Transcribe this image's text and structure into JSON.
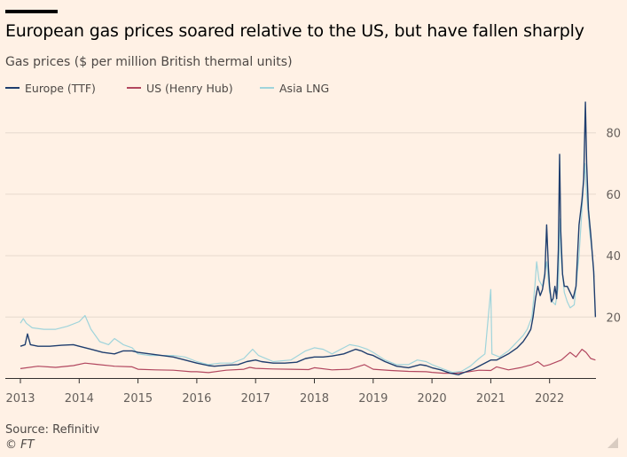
{
  "title": "European gas prices soared relative to the US, but have fallen sharply",
  "subtitle": "Gas prices ($ per million British thermal units)",
  "source": "Source: Refinitiv",
  "copyright": "© FT",
  "colors": {
    "europe": "#1F3E6E",
    "us": "#B2475F",
    "asia": "#9FD4DB",
    "grid": "#E6D9CE",
    "axis": "#33302E",
    "text": "#66605C",
    "background": "#FFF1E5"
  },
  "chart_data": {
    "type": "line",
    "title": "European gas prices soared relative to the US, but have fallen sharply",
    "ylabel": "Gas prices ($ per million British thermal units)",
    "xlim": [
      2013,
      2022.9
    ],
    "ylim": [
      0,
      90
    ],
    "yticks": [
      20,
      40,
      60,
      80
    ],
    "xticks": [
      "2013",
      "2014",
      "2015",
      "2016",
      "2017",
      "2018",
      "2019",
      "2020",
      "2021",
      "2022"
    ],
    "grid": true,
    "legend": "top-left",
    "series": [
      {
        "name": "Europe (TTF)",
        "color": "#1F3E6E",
        "points": [
          [
            2013.0,
            10.5
          ],
          [
            2013.08,
            11
          ],
          [
            2013.12,
            14.5
          ],
          [
            2013.17,
            11
          ],
          [
            2013.3,
            10.5
          ],
          [
            2013.5,
            10.5
          ],
          [
            2013.7,
            10.8
          ],
          [
            2013.9,
            11
          ],
          [
            2014.0,
            10.5
          ],
          [
            2014.2,
            9.5
          ],
          [
            2014.4,
            8.5
          ],
          [
            2014.6,
            8
          ],
          [
            2014.75,
            9
          ],
          [
            2014.9,
            9
          ],
          [
            2015.0,
            8.5
          ],
          [
            2015.2,
            8
          ],
          [
            2015.4,
            7.5
          ],
          [
            2015.6,
            7
          ],
          [
            2015.8,
            6
          ],
          [
            2016.0,
            5
          ],
          [
            2016.2,
            4.2
          ],
          [
            2016.3,
            4
          ],
          [
            2016.5,
            4.3
          ],
          [
            2016.7,
            4.5
          ],
          [
            2016.85,
            5.5
          ],
          [
            2017.0,
            6
          ],
          [
            2017.1,
            5.5
          ],
          [
            2017.3,
            5
          ],
          [
            2017.5,
            5
          ],
          [
            2017.7,
            5.3
          ],
          [
            2017.85,
            6.5
          ],
          [
            2018.0,
            7
          ],
          [
            2018.15,
            7
          ],
          [
            2018.3,
            7.3
          ],
          [
            2018.5,
            8
          ],
          [
            2018.7,
            9.5
          ],
          [
            2018.8,
            9
          ],
          [
            2018.9,
            8
          ],
          [
            2019.0,
            7.5
          ],
          [
            2019.2,
            5.5
          ],
          [
            2019.4,
            4
          ],
          [
            2019.6,
            3.5
          ],
          [
            2019.8,
            4.5
          ],
          [
            2019.9,
            4.2
          ],
          [
            2020.0,
            3.5
          ],
          [
            2020.15,
            2.8
          ],
          [
            2020.3,
            1.8
          ],
          [
            2020.45,
            1.2
          ],
          [
            2020.55,
            2
          ],
          [
            2020.7,
            3
          ],
          [
            2020.85,
            4.5
          ],
          [
            2021.0,
            6
          ],
          [
            2021.1,
            6
          ],
          [
            2021.2,
            7
          ],
          [
            2021.3,
            8
          ],
          [
            2021.45,
            10
          ],
          [
            2021.55,
            12
          ],
          [
            2021.62,
            14
          ],
          [
            2021.68,
            16
          ],
          [
            2021.72,
            20
          ],
          [
            2021.76,
            26
          ],
          [
            2021.8,
            30
          ],
          [
            2021.84,
            27
          ],
          [
            2021.88,
            29
          ],
          [
            2021.92,
            34
          ],
          [
            2021.95,
            50
          ],
          [
            2021.98,
            36
          ],
          [
            2022.0,
            30
          ],
          [
            2022.03,
            25
          ],
          [
            2022.06,
            26
          ],
          [
            2022.09,
            30
          ],
          [
            2022.12,
            26
          ],
          [
            2022.15,
            42
          ],
          [
            2022.17,
            73
          ],
          [
            2022.19,
            48
          ],
          [
            2022.22,
            34
          ],
          [
            2022.25,
            30
          ],
          [
            2022.3,
            30
          ],
          [
            2022.35,
            28
          ],
          [
            2022.4,
            26
          ],
          [
            2022.45,
            30
          ],
          [
            2022.5,
            50
          ],
          [
            2022.55,
            58
          ],
          [
            2022.58,
            65
          ],
          [
            2022.61,
            90
          ],
          [
            2022.63,
            70
          ],
          [
            2022.66,
            55
          ],
          [
            2022.7,
            47
          ],
          [
            2022.75,
            35
          ],
          [
            2022.78,
            20
          ]
        ]
      },
      {
        "name": "US (Henry Hub)",
        "color": "#B2475F",
        "points": [
          [
            2013.0,
            3.2
          ],
          [
            2013.3,
            4
          ],
          [
            2013.6,
            3.6
          ],
          [
            2013.9,
            4.2
          ],
          [
            2014.1,
            5
          ],
          [
            2014.3,
            4.6
          ],
          [
            2014.6,
            4
          ],
          [
            2014.9,
            3.8
          ],
          [
            2015.0,
            3
          ],
          [
            2015.3,
            2.8
          ],
          [
            2015.6,
            2.7
          ],
          [
            2015.9,
            2.2
          ],
          [
            2016.0,
            2.2
          ],
          [
            2016.2,
            1.9
          ],
          [
            2016.5,
            2.7
          ],
          [
            2016.8,
            3
          ],
          [
            2016.9,
            3.6
          ],
          [
            2017.0,
            3.3
          ],
          [
            2017.3,
            3.1
          ],
          [
            2017.6,
            3
          ],
          [
            2017.9,
            2.9
          ],
          [
            2018.0,
            3.5
          ],
          [
            2018.3,
            2.8
          ],
          [
            2018.6,
            3
          ],
          [
            2018.85,
            4.5
          ],
          [
            2019.0,
            3
          ],
          [
            2019.3,
            2.6
          ],
          [
            2019.6,
            2.3
          ],
          [
            2019.9,
            2.2
          ],
          [
            2020.0,
            2
          ],
          [
            2020.2,
            1.7
          ],
          [
            2020.4,
            1.7
          ],
          [
            2020.6,
            2.1
          ],
          [
            2020.8,
            2.7
          ],
          [
            2021.0,
            2.6
          ],
          [
            2021.1,
            3.8
          ],
          [
            2021.3,
            2.8
          ],
          [
            2021.5,
            3.5
          ],
          [
            2021.7,
            4.5
          ],
          [
            2021.8,
            5.5
          ],
          [
            2021.9,
            4
          ],
          [
            2022.0,
            4.5
          ],
          [
            2022.2,
            6
          ],
          [
            2022.35,
            8.5
          ],
          [
            2022.45,
            7
          ],
          [
            2022.55,
            9.5
          ],
          [
            2022.62,
            8.5
          ],
          [
            2022.7,
            6.5
          ],
          [
            2022.78,
            6
          ]
        ]
      },
      {
        "name": "Asia LNG",
        "color": "#9FD4DB",
        "points": [
          [
            2013.0,
            18
          ],
          [
            2013.05,
            19.5
          ],
          [
            2013.1,
            18
          ],
          [
            2013.2,
            16.5
          ],
          [
            2013.4,
            16
          ],
          [
            2013.6,
            16
          ],
          [
            2013.8,
            17
          ],
          [
            2014.0,
            18.5
          ],
          [
            2014.1,
            20.5
          ],
          [
            2014.2,
            16
          ],
          [
            2014.35,
            12
          ],
          [
            2014.5,
            11
          ],
          [
            2014.6,
            13
          ],
          [
            2014.75,
            11
          ],
          [
            2014.9,
            10
          ],
          [
            2015.0,
            8
          ],
          [
            2015.2,
            7.5
          ],
          [
            2015.4,
            7.5
          ],
          [
            2015.6,
            7.5
          ],
          [
            2015.8,
            7
          ],
          [
            2016.0,
            5.5
          ],
          [
            2016.2,
            4.5
          ],
          [
            2016.4,
            5
          ],
          [
            2016.6,
            5
          ],
          [
            2016.8,
            6.5
          ],
          [
            2016.95,
            9.5
          ],
          [
            2017.05,
            7.5
          ],
          [
            2017.3,
            5.5
          ],
          [
            2017.6,
            6
          ],
          [
            2017.85,
            9
          ],
          [
            2018.0,
            10
          ],
          [
            2018.15,
            9.5
          ],
          [
            2018.3,
            8
          ],
          [
            2018.5,
            10
          ],
          [
            2018.6,
            11
          ],
          [
            2018.75,
            10.5
          ],
          [
            2018.9,
            9.5
          ],
          [
            2019.0,
            8.5
          ],
          [
            2019.2,
            6
          ],
          [
            2019.4,
            4.5
          ],
          [
            2019.6,
            4.5
          ],
          [
            2019.75,
            6
          ],
          [
            2019.9,
            5.5
          ],
          [
            2020.0,
            4.5
          ],
          [
            2020.2,
            3
          ],
          [
            2020.35,
            2
          ],
          [
            2020.5,
            2.3
          ],
          [
            2020.65,
            4
          ],
          [
            2020.8,
            6.5
          ],
          [
            2020.9,
            8
          ],
          [
            2021.0,
            29
          ],
          [
            2021.02,
            8
          ],
          [
            2021.15,
            7
          ],
          [
            2021.3,
            9
          ],
          [
            2021.45,
            12
          ],
          [
            2021.55,
            14
          ],
          [
            2021.62,
            16
          ],
          [
            2021.7,
            20
          ],
          [
            2021.75,
            30
          ],
          [
            2021.78,
            38
          ],
          [
            2021.82,
            32
          ],
          [
            2021.88,
            30
          ],
          [
            2021.95,
            38
          ],
          [
            2022.0,
            28
          ],
          [
            2022.05,
            25
          ],
          [
            2022.1,
            24
          ],
          [
            2022.15,
            30
          ],
          [
            2022.18,
            52
          ],
          [
            2022.2,
            38
          ],
          [
            2022.25,
            28
          ],
          [
            2022.3,
            25
          ],
          [
            2022.35,
            23
          ],
          [
            2022.42,
            24
          ],
          [
            2022.5,
            40
          ],
          [
            2022.55,
            55
          ],
          [
            2022.6,
            70
          ],
          [
            2022.63,
            60
          ],
          [
            2022.68,
            48
          ],
          [
            2022.72,
            42
          ],
          [
            2022.76,
            33
          ]
        ]
      }
    ]
  }
}
